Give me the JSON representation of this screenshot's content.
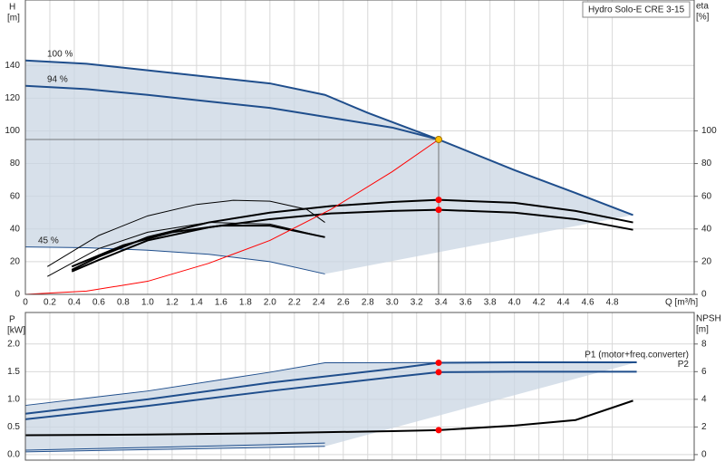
{
  "chart_data": [
    {
      "type": "line",
      "title": "Hydro Solo-E CRE 3-15",
      "ylabel": "H",
      "yunit": "[m]",
      "y2label": "eta",
      "y2unit": "[%]",
      "xlabel": "Q [m³/h]",
      "xlim": [
        0,
        5.47
      ],
      "ylim": [
        0,
        180
      ],
      "y2lim": [
        0,
        180
      ],
      "xticks": [
        0,
        0.2,
        0.4,
        0.6,
        0.8,
        {
          "value": 1,
          "label": "1.0"
        },
        1.2,
        1.4,
        1.6,
        1.8,
        {
          "value": 2,
          "label": "2.0"
        },
        2.2,
        2.4,
        2.6,
        2.8,
        {
          "value": 3,
          "label": "3.0"
        },
        3.2,
        3.4,
        3.6,
        3.8,
        {
          "value": 4,
          "label": "4.0"
        },
        4.2,
        4.4,
        4.6,
        4.8
      ],
      "yticks": [
        0,
        20,
        40,
        60,
        80,
        100,
        120,
        140
      ],
      "y2ticks": [
        0,
        20,
        40,
        60,
        80,
        100
      ],
      "grid": true,
      "shade_color": "#c9d6e3",
      "show_xtick_labels": true,
      "series": [
        {
          "name": "100 %",
          "color": "#1f4e8c",
          "style": "thick",
          "x": [
            0,
            0.5,
            1,
            1.5,
            2,
            2.45,
            2.8,
            3.38,
            4,
            4.5,
            4.97
          ],
          "values": [
            143,
            141,
            137,
            133,
            129,
            122,
            111,
            94.7,
            76,
            62,
            48.5
          ]
        },
        {
          "name": "94 %",
          "color": "#1f4e8c",
          "style": "thick",
          "x": [
            0,
            0.5,
            1,
            1.5,
            2,
            2.5,
            3,
            3.38
          ],
          "values": [
            127.5,
            125.5,
            122,
            118,
            114,
            108,
            102,
            94.7
          ]
        },
        {
          "name": "45 %",
          "color": "#1f4e8c",
          "style": "thin",
          "x": [
            0,
            0.5,
            1,
            1.5,
            2,
            2.45
          ],
          "values": [
            29,
            28.5,
            27,
            24.5,
            20,
            12.5
          ]
        },
        {
          "color": "#000000",
          "style": "thick",
          "axis": "y2",
          "x": [
            0.38,
            0.6,
            1,
            1.5,
            2,
            2.5,
            3,
            3.38,
            4,
            4.5,
            4.97
          ],
          "values": [
            15,
            23,
            35,
            44,
            50,
            54,
            56.5,
            57.8,
            56,
            51,
            44
          ]
        },
        {
          "color": "#000000",
          "style": "thick",
          "axis": "y2",
          "x": [
            0.38,
            0.6,
            1,
            1.5,
            2,
            2.5,
            3,
            3.38,
            4,
            4.5,
            4.97
          ],
          "values": [
            14,
            21,
            33,
            41,
            46,
            49.5,
            51,
            51.7,
            50,
            46,
            39.5
          ]
        },
        {
          "color": "#000000",
          "style": "thick",
          "axis": "y2",
          "x": [
            0.38,
            0.8,
            1.2,
            1.6,
            2,
            2.45
          ],
          "values": [
            17,
            30,
            38,
            42,
            42,
            35
          ]
        },
        {
          "color": "#000000",
          "style": "thin",
          "axis": "y2",
          "x": [
            0.18,
            0.6,
            1,
            1.4,
            1.7,
            2,
            2.3,
            2.45
          ],
          "values": [
            17,
            36,
            48,
            55,
            57.5,
            57,
            52,
            44
          ]
        },
        {
          "color": "#000000",
          "style": "thin",
          "axis": "y2",
          "x": [
            0.18,
            0.6,
            1,
            1.5,
            2,
            2.45
          ],
          "values": [
            11,
            28,
            38,
            44,
            43,
            35
          ]
        },
        {
          "color": "#ff0000",
          "style": "thin",
          "x": [
            0,
            0.5,
            1,
            1.5,
            2,
            2.5,
            3,
            3.38
          ],
          "values": [
            0,
            2,
            8,
            19,
            33,
            52,
            75,
            94.7
          ]
        },
        {
          "color": "#ffc000",
          "style": "point",
          "guide": true,
          "x": [
            3.38
          ],
          "values": [
            94.7
          ]
        },
        {
          "color": "#ff0000",
          "style": "point",
          "axis": "y2",
          "x": [
            3.38
          ],
          "values": [
            57.8
          ]
        },
        {
          "color": "#ff0000",
          "style": "point",
          "axis": "y2",
          "x": [
            3.38
          ],
          "values": [
            51.7
          ]
        }
      ]
    },
    {
      "type": "line",
      "ylabel": "P",
      "yunit": "[kW]",
      "y2label": "NPSH",
      "y2unit": "[m]",
      "xlim": [
        0,
        5.47
      ],
      "ylim": [
        -0.1,
        2.57
      ],
      "y2lim": [
        -0.4,
        10.28
      ],
      "xticks": [
        0,
        0.2,
        0.4,
        0.6,
        0.8,
        1,
        1.2,
        1.4,
        1.6,
        1.8,
        2,
        2.2,
        2.4,
        2.6,
        2.8,
        3,
        3.2,
        3.4,
        3.6,
        3.8,
        4,
        4.2,
        4.4,
        4.6,
        4.8
      ],
      "yticks": [
        {
          "value": 0,
          "label": "0.0"
        },
        0.5,
        {
          "value": 1,
          "label": "1.0"
        },
        1.5,
        {
          "value": 2,
          "label": "2.0"
        }
      ],
      "y2ticks": [
        0,
        2,
        4,
        6,
        8
      ],
      "grid": true,
      "shade_color": "#c9d6e3",
      "show_xtick_labels": false,
      "series": [
        {
          "name": "P1 (motor+freq.converter)",
          "color": "#1f4e8c",
          "style": "thick",
          "x": [
            0,
            1,
            2,
            3,
            3.38,
            4,
            5
          ],
          "values": [
            0.74,
            1.0,
            1.3,
            1.55,
            1.66,
            1.67,
            1.67
          ]
        },
        {
          "name": "P2",
          "color": "#1f4e8c",
          "style": "thick",
          "x": [
            0,
            1,
            2,
            3,
            3.38,
            4,
            5
          ],
          "values": [
            0.64,
            0.88,
            1.15,
            1.4,
            1.49,
            1.5,
            1.5
          ]
        },
        {
          "color": "#1f4e8c",
          "style": "thin",
          "x": [
            0,
            1,
            2,
            2.45,
            5
          ],
          "values": [
            0.89,
            1.15,
            1.49,
            1.66,
            1.67
          ]
        },
        {
          "color": "#1f4e8c",
          "style": "thin",
          "x": [
            0,
            1,
            2,
            2.45
          ],
          "values": [
            0.08,
            0.13,
            0.18,
            0.21
          ]
        },
        {
          "color": "#1f4e8c",
          "style": "thin",
          "x": [
            0,
            1,
            2,
            2.45
          ],
          "values": [
            0.05,
            0.09,
            0.13,
            0.15
          ]
        },
        {
          "color": "#000000",
          "style": "thick",
          "axis": "y2",
          "x": [
            0,
            1,
            2,
            3,
            3.38,
            4,
            4.5,
            4.97
          ],
          "values": [
            1.4,
            1.45,
            1.55,
            1.7,
            1.77,
            2.1,
            2.5,
            3.9
          ]
        },
        {
          "color": "#ff0000",
          "style": "point",
          "x": [
            3.38
          ],
          "values": [
            1.66
          ]
        },
        {
          "color": "#ff0000",
          "style": "point",
          "x": [
            3.38
          ],
          "values": [
            1.49
          ]
        },
        {
          "color": "#ff0000",
          "style": "point",
          "axis": "y2",
          "x": [
            3.38
          ],
          "values": [
            1.77
          ]
        }
      ]
    }
  ]
}
